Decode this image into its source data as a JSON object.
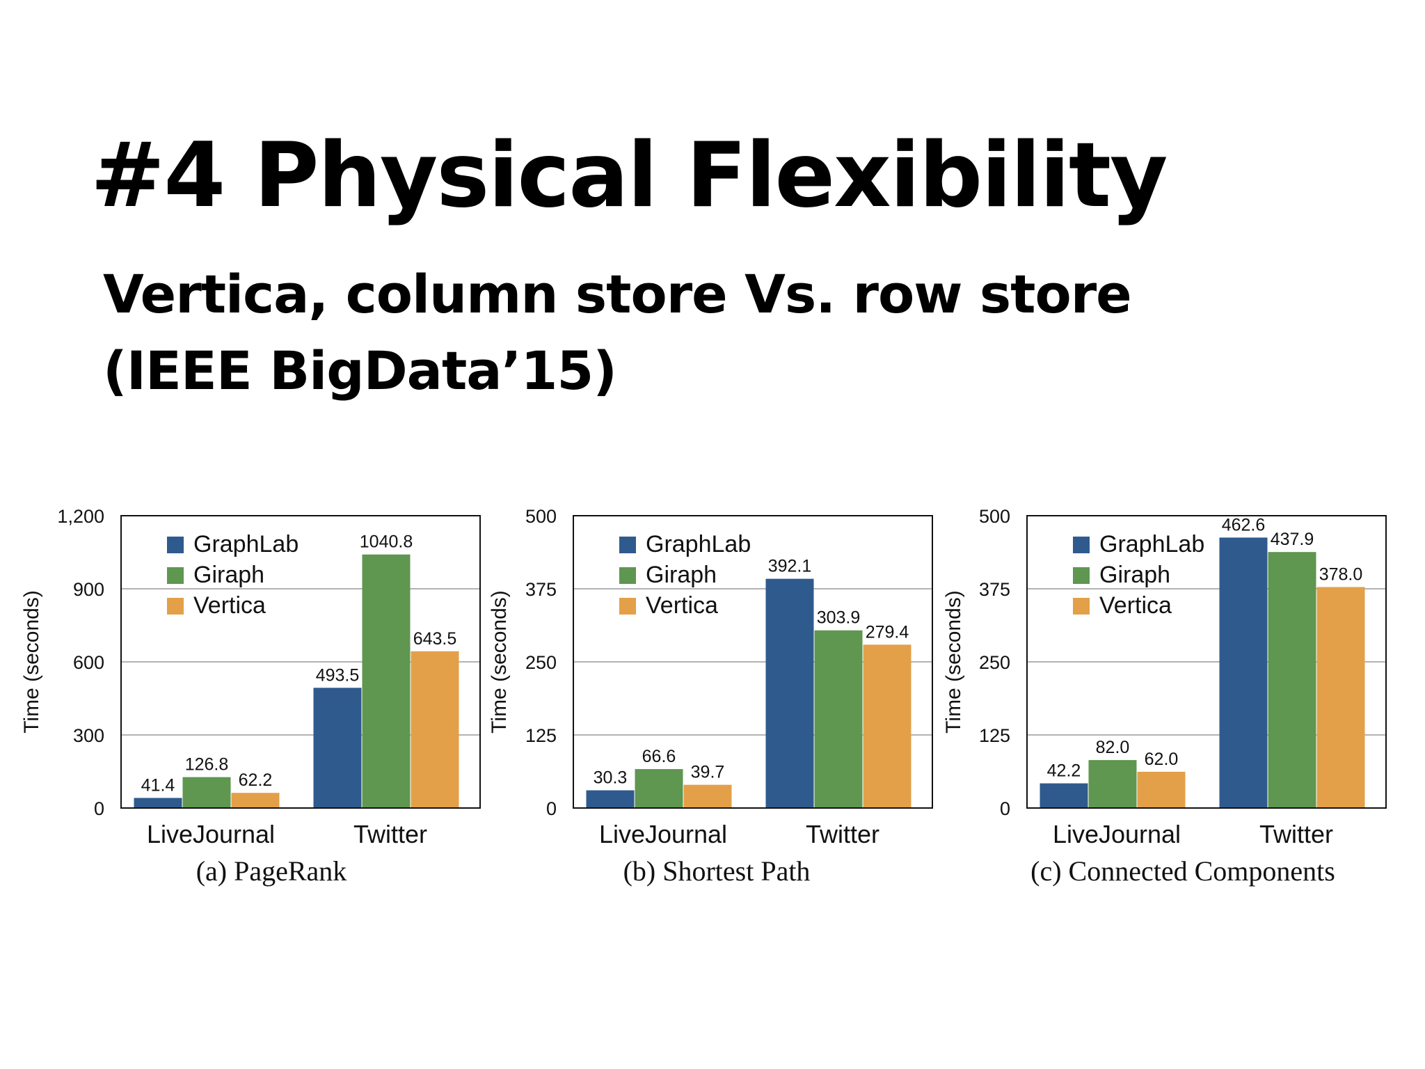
{
  "slide": {
    "title": "#4 Physical Flexibility",
    "subtitle": "Vertica, column store Vs. row store (IEEE BigData’15)"
  },
  "colors": {
    "GraphLab": "#2f5a8e",
    "Giraph": "#5f9650",
    "Vertica": "#e3a048"
  },
  "chart_data": [
    {
      "type": "bar",
      "caption": "(a) PageRank",
      "ylabel": "Time (seconds)",
      "ylim": [
        0,
        1200
      ],
      "yticks": [
        0,
        300,
        600,
        900,
        1200
      ],
      "ytick_labels": [
        "0",
        "300",
        "600",
        "900",
        "1,200"
      ],
      "categories": [
        "LiveJournal",
        "Twitter"
      ],
      "series": [
        {
          "name": "GraphLab",
          "values": [
            41.4,
            493.5
          ],
          "labels": [
            "41.4",
            "493.5"
          ]
        },
        {
          "name": "Giraph",
          "values": [
            126.8,
            1040.8
          ],
          "labels": [
            "126.8",
            "1040.8"
          ]
        },
        {
          "name": "Vertica",
          "values": [
            62.2,
            643.5
          ],
          "labels": [
            "62.2",
            "643.5"
          ]
        }
      ],
      "legend": "top-left",
      "grid": true
    },
    {
      "type": "bar",
      "caption": "(b) Shortest Path",
      "ylabel": "Time (seconds)",
      "ylim": [
        0,
        500
      ],
      "yticks": [
        0,
        125,
        250,
        375,
        500
      ],
      "ytick_labels": [
        "0",
        "125",
        "250",
        "375",
        "500"
      ],
      "categories": [
        "LiveJournal",
        "Twitter"
      ],
      "series": [
        {
          "name": "GraphLab",
          "values": [
            30.3,
            392.1
          ],
          "labels": [
            "30.3",
            "392.1"
          ]
        },
        {
          "name": "Giraph",
          "values": [
            66.6,
            303.9
          ],
          "labels": [
            "66.6",
            "303.9"
          ]
        },
        {
          "name": "Vertica",
          "values": [
            39.7,
            279.4
          ],
          "labels": [
            "39.7",
            "279.4"
          ]
        }
      ],
      "legend": "top-left",
      "grid": true
    },
    {
      "type": "bar",
      "caption": "(c) Connected Components",
      "ylabel": "Time (seconds)",
      "ylim": [
        0,
        500
      ],
      "yticks": [
        0,
        125,
        250,
        375,
        500
      ],
      "ytick_labels": [
        "0",
        "125",
        "250",
        "375",
        "500"
      ],
      "categories": [
        "LiveJournal",
        "Twitter"
      ],
      "series": [
        {
          "name": "GraphLab",
          "values": [
            42.2,
            462.6
          ],
          "labels": [
            "42.2",
            "462.6"
          ]
        },
        {
          "name": "Giraph",
          "values": [
            82.0,
            437.9
          ],
          "labels": [
            "82.0",
            "437.9"
          ]
        },
        {
          "name": "Vertica",
          "values": [
            62.0,
            378.0
          ],
          "labels": [
            "62.0",
            "378.0"
          ]
        }
      ],
      "legend": "top-left",
      "grid": true
    }
  ]
}
